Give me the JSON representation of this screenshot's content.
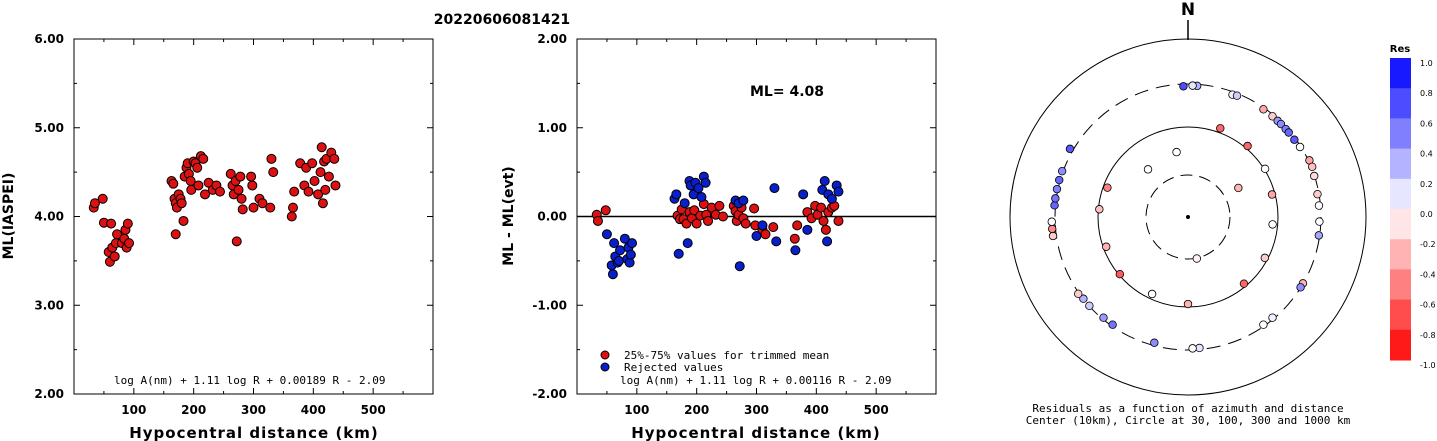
{
  "title": "20220606081421",
  "colors": {
    "red_marker": "#dd1111",
    "blue_marker": "#0a1fcc",
    "axis": "#000000"
  },
  "chart_data": [
    {
      "type": "scatter",
      "xlabel": "Hypocentral distance (km)",
      "ylabel": "ML(IASPEI)",
      "xlim": [
        0,
        600
      ],
      "ylim": [
        2.0,
        6.0
      ],
      "xticks": [
        "100",
        "200",
        "300",
        "400",
        "500"
      ],
      "yticks": [
        "2.00",
        "3.00",
        "4.00",
        "5.00",
        "6.00"
      ],
      "formula": "log A(nm) + 1.11 log R + 0.00189 R - 2.09",
      "series": [
        {
          "color": "#dd1111",
          "points": [
            [
              33,
              4.1
            ],
            [
              35,
              4.15
            ],
            [
              48,
              4.2
            ],
            [
              50,
              3.93
            ],
            [
              58,
              3.6
            ],
            [
              60,
              3.49
            ],
            [
              62,
              3.92
            ],
            [
              64,
              3.65
            ],
            [
              68,
              3.55
            ],
            [
              70,
              3.7
            ],
            [
              72,
              3.8
            ],
            [
              80,
              3.7
            ],
            [
              84,
              3.75
            ],
            [
              86,
              3.85
            ],
            [
              88,
              3.65
            ],
            [
              90,
              3.92
            ],
            [
              92,
              3.7
            ],
            [
              163,
              4.4
            ],
            [
              166,
              4.37
            ],
            [
              168,
              4.2
            ],
            [
              170,
              4.15
            ],
            [
              170,
              3.8
            ],
            [
              172,
              4.1
            ],
            [
              175,
              4.25
            ],
            [
              178,
              4.2
            ],
            [
              180,
              4.15
            ],
            [
              183,
              3.95
            ],
            [
              185,
              4.45
            ],
            [
              188,
              4.55
            ],
            [
              190,
              4.6
            ],
            [
              192,
              4.48
            ],
            [
              195,
              4.4
            ],
            [
              196,
              4.3
            ],
            [
              200,
              4.62
            ],
            [
              203,
              4.6
            ],
            [
              206,
              4.55
            ],
            [
              208,
              4.35
            ],
            [
              212,
              4.68
            ],
            [
              216,
              4.65
            ],
            [
              219,
              4.25
            ],
            [
              225,
              4.38
            ],
            [
              232,
              4.3
            ],
            [
              238,
              4.35
            ],
            [
              244,
              4.28
            ],
            [
              262,
              4.48
            ],
            [
              265,
              4.35
            ],
            [
              267,
              4.25
            ],
            [
              270,
              4.4
            ],
            [
              272,
              3.72
            ],
            [
              275,
              4.3
            ],
            [
              278,
              4.45
            ],
            [
              280,
              4.2
            ],
            [
              282,
              4.08
            ],
            [
              296,
              4.45
            ],
            [
              298,
              4.35
            ],
            [
              300,
              4.1
            ],
            [
              310,
              4.2
            ],
            [
              315,
              4.15
            ],
            [
              330,
              4.65
            ],
            [
              333,
              4.5
            ],
            [
              328,
              4.1
            ],
            [
              364,
              4.0
            ],
            [
              366,
              4.1
            ],
            [
              368,
              4.28
            ],
            [
              378,
              4.6
            ],
            [
              385,
              4.35
            ],
            [
              388,
              4.55
            ],
            [
              392,
              4.28
            ],
            [
              398,
              4.6
            ],
            [
              402,
              4.4
            ],
            [
              408,
              4.25
            ],
            [
              412,
              4.5
            ],
            [
              414,
              4.78
            ],
            [
              416,
              4.15
            ],
            [
              418,
              4.62
            ],
            [
              420,
              4.3
            ],
            [
              422,
              4.65
            ],
            [
              426,
              4.45
            ],
            [
              430,
              4.72
            ],
            [
              435,
              4.65
            ],
            [
              437,
              4.35
            ]
          ]
        }
      ]
    },
    {
      "type": "scatter",
      "xlabel": "Hypocentral distance (km)",
      "ylabel": "ML - ML(evt)",
      "xlim": [
        0,
        600
      ],
      "ylim": [
        -2.0,
        2.0
      ],
      "xticks": [
        "100",
        "200",
        "300",
        "400",
        "500"
      ],
      "yticks": [
        "-2.00",
        "-1.00",
        "0.00",
        "1.00",
        "2.00"
      ],
      "annotation": "ML= 4.08",
      "formula": "log A(nm) + 1.11 log R + 0.00116 R - 2.09",
      "legend": [
        {
          "label": "25%-75% values for trimmed mean",
          "color": "#dd1111"
        },
        {
          "label": "Rejected values",
          "color": "#0a1fcc"
        }
      ],
      "series": [
        {
          "name": "25%-75% values for trimmed mean",
          "color": "#dd1111",
          "points": [
            [
              33,
              0.02
            ],
            [
              35,
              -0.05
            ],
            [
              48,
              0.07
            ],
            [
              168,
              0.01
            ],
            [
              172,
              -0.03
            ],
            [
              175,
              0.08
            ],
            [
              178,
              -0.03
            ],
            [
              183,
              -0.08
            ],
            [
              188,
              0.05
            ],
            [
              192,
              -0.02
            ],
            [
              196,
              0.07
            ],
            [
              200,
              -0.08
            ],
            [
              206,
              0.01
            ],
            [
              212,
              0.14
            ],
            [
              216,
              0.02
            ],
            [
              219,
              -0.05
            ],
            [
              225,
              0.1
            ],
            [
              232,
              0.02
            ],
            [
              238,
              0.12
            ],
            [
              244,
              0.0
            ],
            [
              262,
              0.12
            ],
            [
              265,
              0.06
            ],
            [
              267,
              -0.05
            ],
            [
              270,
              0.02
            ],
            [
              275,
              0.1
            ],
            [
              278,
              -0.02
            ],
            [
              282,
              -0.08
            ],
            [
              296,
              0.09
            ],
            [
              298,
              -0.1
            ],
            [
              310,
              -0.15
            ],
            [
              315,
              -0.2
            ],
            [
              328,
              -0.12
            ],
            [
              364,
              -0.25
            ],
            [
              368,
              -0.1
            ],
            [
              385,
              0.05
            ],
            [
              392,
              -0.02
            ],
            [
              398,
              0.12
            ],
            [
              402,
              0.02
            ],
            [
              408,
              0.1
            ],
            [
              412,
              -0.05
            ],
            [
              416,
              -0.15
            ],
            [
              420,
              0.05
            ],
            [
              426,
              0.1
            ],
            [
              430,
              0.12
            ],
            [
              437,
              -0.05
            ]
          ]
        },
        {
          "name": "Rejected values",
          "color": "#0a1fcc",
          "points": [
            [
              50,
              -0.2
            ],
            [
              58,
              -0.55
            ],
            [
              60,
              -0.65
            ],
            [
              62,
              -0.3
            ],
            [
              64,
              -0.45
            ],
            [
              68,
              -0.52
            ],
            [
              70,
              -0.5
            ],
            [
              72,
              -0.38
            ],
            [
              80,
              -0.25
            ],
            [
              84,
              -0.48
            ],
            [
              86,
              -0.35
            ],
            [
              88,
              -0.52
            ],
            [
              90,
              -0.43
            ],
            [
              92,
              -0.3
            ],
            [
              163,
              0.2
            ],
            [
              166,
              0.25
            ],
            [
              170,
              -0.42
            ],
            [
              180,
              0.15
            ],
            [
              185,
              -0.3
            ],
            [
              188,
              0.4
            ],
            [
              190,
              0.35
            ],
            [
              195,
              0.25
            ],
            [
              198,
              0.38
            ],
            [
              203,
              0.32
            ],
            [
              208,
              0.22
            ],
            [
              212,
              0.45
            ],
            [
              215,
              0.38
            ],
            [
              265,
              0.18
            ],
            [
              270,
              0.15
            ],
            [
              272,
              -0.56
            ],
            [
              278,
              0.18
            ],
            [
              300,
              -0.22
            ],
            [
              310,
              -0.1
            ],
            [
              330,
              0.32
            ],
            [
              333,
              -0.28
            ],
            [
              365,
              -0.38
            ],
            [
              378,
              0.25
            ],
            [
              385,
              -0.15
            ],
            [
              410,
              0.3
            ],
            [
              414,
              0.4
            ],
            [
              418,
              -0.28
            ],
            [
              420,
              0.25
            ],
            [
              426,
              0.2
            ],
            [
              434,
              0.35
            ],
            [
              437,
              0.28
            ]
          ]
        }
      ]
    },
    {
      "type": "scatter",
      "subtype": "polar",
      "north_label": "N",
      "caption_line1": "Residuals as a function of azimuth and distance",
      "caption_line2": "Center (10km), Circle at 30, 100, 300 and 1000 km",
      "colorbar_title": "Res",
      "colorbar_ticks": [
        "1.0",
        "0.8",
        "0.6",
        "0.4",
        "0.2",
        "0.0",
        "-0.2",
        "-0.4",
        "-0.6",
        "-0.8",
        "-1.0"
      ],
      "circles_km": [
        30,
        100,
        300,
        1000
      ],
      "points_az_dist_res": [
        [
          358,
          295,
          0.7
        ],
        [
          4,
          300,
          0.3
        ],
        [
          2,
          300,
          0.1
        ],
        [
          20,
          290,
          0.05
        ],
        [
          22,
          295,
          0.2
        ],
        [
          35,
          300,
          -0.35
        ],
        [
          40,
          300,
          -0.2
        ],
        [
          43,
          300,
          0.4
        ],
        [
          45,
          300,
          0.45
        ],
        [
          48,
          300,
          0.5
        ],
        [
          50,
          300,
          0.6
        ],
        [
          54,
          300,
          0.65
        ],
        [
          58,
          305,
          0.0
        ],
        [
          65,
          320,
          -0.35
        ],
        [
          68,
          320,
          -0.25
        ],
        [
          72,
          310,
          -0.15
        ],
        [
          80,
          300,
          -0.2
        ],
        [
          85,
          300,
          0.0
        ],
        [
          92,
          300,
          0.0
        ],
        [
          98,
          305,
          0.35
        ],
        [
          120,
          310,
          -0.3
        ],
        [
          122,
          310,
          0.45
        ],
        [
          140,
          300,
          0.05
        ],
        [
          145,
          300,
          0.0
        ],
        [
          175,
          300,
          0.1
        ],
        [
          178,
          300,
          0.0
        ],
        [
          195,
          290,
          0.45
        ],
        [
          215,
          300,
          0.55
        ],
        [
          220,
          300,
          0.4
        ],
        [
          228,
          310,
          0.2
        ],
        [
          232,
          310,
          0.3
        ],
        [
          235,
          320,
          -0.2
        ],
        [
          262,
          340,
          -0.2
        ],
        [
          265,
          340,
          -0.45
        ],
        [
          268,
          340,
          0.0
        ],
        [
          275,
          320,
          0.6
        ],
        [
          278,
          320,
          0.55
        ],
        [
          282,
          320,
          0.5
        ],
        [
          286,
          320,
          0.6
        ],
        [
          290,
          320,
          0.45
        ],
        [
          300,
          340,
          0.65
        ],
        [
          20,
          115,
          -0.6
        ],
        [
          40,
          110,
          -0.6
        ],
        [
          58,
          105,
          0.0
        ],
        [
          75,
          95,
          -0.35
        ],
        [
          95,
          90,
          0.0
        ],
        [
          118,
          95,
          -0.2
        ],
        [
          140,
          95,
          -0.6
        ],
        [
          180,
          95,
          -0.3
        ],
        [
          205,
          90,
          0.0
        ],
        [
          230,
          100,
          -0.65
        ],
        [
          250,
          95,
          -0.3
        ],
        [
          275,
          100,
          -0.25
        ],
        [
          290,
          92,
          -0.5
        ],
        [
          320,
          50,
          0.0
        ],
        [
          350,
          55,
          0.0
        ],
        [
          168,
          30,
          -0.05
        ],
        [
          60,
          45,
          -0.3
        ]
      ]
    }
  ]
}
